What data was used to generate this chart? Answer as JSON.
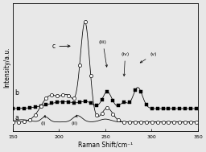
{
  "xlabel": "Raman Shift/cm⁻¹",
  "ylabel": "Intensity/a.u.",
  "xlim": [
    150,
    350
  ],
  "ylim": [
    0,
    1.05
  ],
  "background_color": "#e8e8e8",
  "axes_bg": "#e8e8e8",
  "label_a": "a",
  "label_b": "b",
  "label_c": "c",
  "ann_i": "(i)",
  "ann_ii": "(ii)",
  "ann_iii": "(iii)",
  "ann_iv": "(iv)",
  "ann_v": "(v)"
}
